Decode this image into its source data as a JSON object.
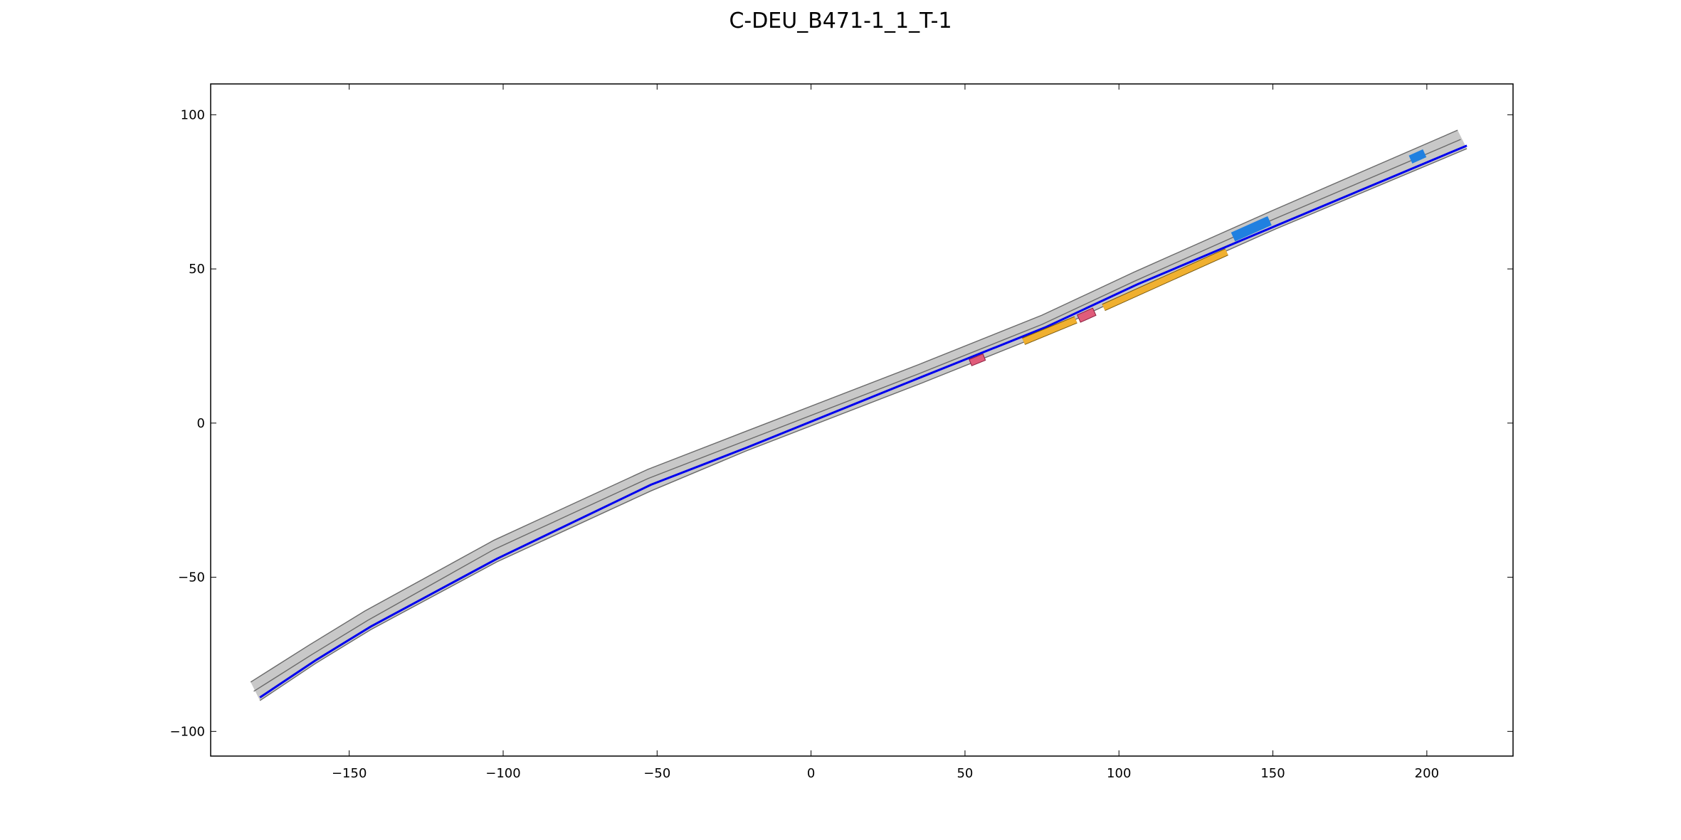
{
  "chart_data": {
    "type": "scatter",
    "title": "C-DEU_B471-1_1_T-1",
    "xlabel": "",
    "ylabel": "",
    "xlim": [
      -195,
      228
    ],
    "ylim": [
      -108,
      110
    ],
    "xticks": [
      -150,
      -100,
      -50,
      0,
      50,
      100,
      150,
      200
    ],
    "yticks": [
      -100,
      -50,
      0,
      50,
      100
    ],
    "xtick_labels": [
      "−150",
      "−100",
      "−50",
      "0",
      "50",
      "100",
      "150",
      "200"
    ],
    "ytick_labels": [
      "−100",
      "−50",
      "0",
      "50",
      "100"
    ],
    "grid": false,
    "road": {
      "color": "#c8c8c8",
      "left_edge": [
        [
          -182,
          -84
        ],
        [
          -163,
          -72
        ],
        [
          -145,
          -61
        ],
        [
          -103,
          -38
        ],
        [
          -53,
          -15
        ],
        [
          -22,
          -3
        ],
        [
          35,
          19
        ],
        [
          75,
          35
        ],
        [
          105,
          49
        ],
        [
          150,
          69
        ],
        [
          210,
          95
        ]
      ],
      "center_line": [
        [
          -181,
          -87
        ],
        [
          -162,
          -75
        ],
        [
          -144,
          -64
        ],
        [
          -103,
          -41
        ],
        [
          -53,
          -18
        ],
        [
          -22,
          -6
        ],
        [
          35,
          16
        ],
        [
          75,
          32
        ],
        [
          105,
          46
        ],
        [
          150,
          66
        ],
        [
          211,
          92
        ]
      ],
      "right_edge": [
        [
          -179,
          -90
        ],
        [
          -161,
          -78
        ],
        [
          -143,
          -67
        ],
        [
          -102,
          -45
        ],
        [
          -52,
          -22
        ],
        [
          -21,
          -9
        ],
        [
          36,
          13
        ],
        [
          76,
          29
        ],
        [
          106,
          43
        ],
        [
          151,
          63
        ],
        [
          213,
          89
        ]
      ]
    },
    "ego_path": {
      "color": "#0000ee",
      "points": [
        [
          -179,
          -89
        ],
        [
          -161,
          -77
        ],
        [
          -143,
          -66
        ],
        [
          -102,
          -44
        ],
        [
          -52,
          -20
        ],
        [
          -21,
          -8
        ],
        [
          36,
          15
        ],
        [
          76,
          31
        ],
        [
          106,
          45
        ],
        [
          151,
          64
        ],
        [
          213,
          90
        ]
      ]
    },
    "obstacles": [
      {
        "kind": "ego-vehicle",
        "color": "#e05c7a",
        "center": [
          54,
          20.5
        ],
        "length": 4.8,
        "width": 2.2,
        "angle_deg": 22
      },
      {
        "kind": "predicted-trajectory",
        "color": "#f0b030",
        "from": [
          69,
          26.5
        ],
        "to": [
          86,
          33.5
        ],
        "width": 2.0
      },
      {
        "kind": "dynamic-obstacle",
        "color": "#e05c7a",
        "center": [
          89.5,
          35
        ],
        "length": 5.5,
        "width": 2.6,
        "angle_deg": 24
      },
      {
        "kind": "predicted-trajectory",
        "color": "#f0b030",
        "from": [
          95,
          37.5
        ],
        "to": [
          135,
          55.5
        ],
        "width": 2.0
      },
      {
        "kind": "goal-region",
        "color": "#2080e0",
        "center": [
          143,
          63
        ],
        "length": 13,
        "width": 3.2,
        "angle_deg": 24
      },
      {
        "kind": "goal-region",
        "color": "#2080e0",
        "center": [
          197,
          86.5
        ],
        "length": 5,
        "width": 2.8,
        "angle_deg": 24
      }
    ]
  }
}
